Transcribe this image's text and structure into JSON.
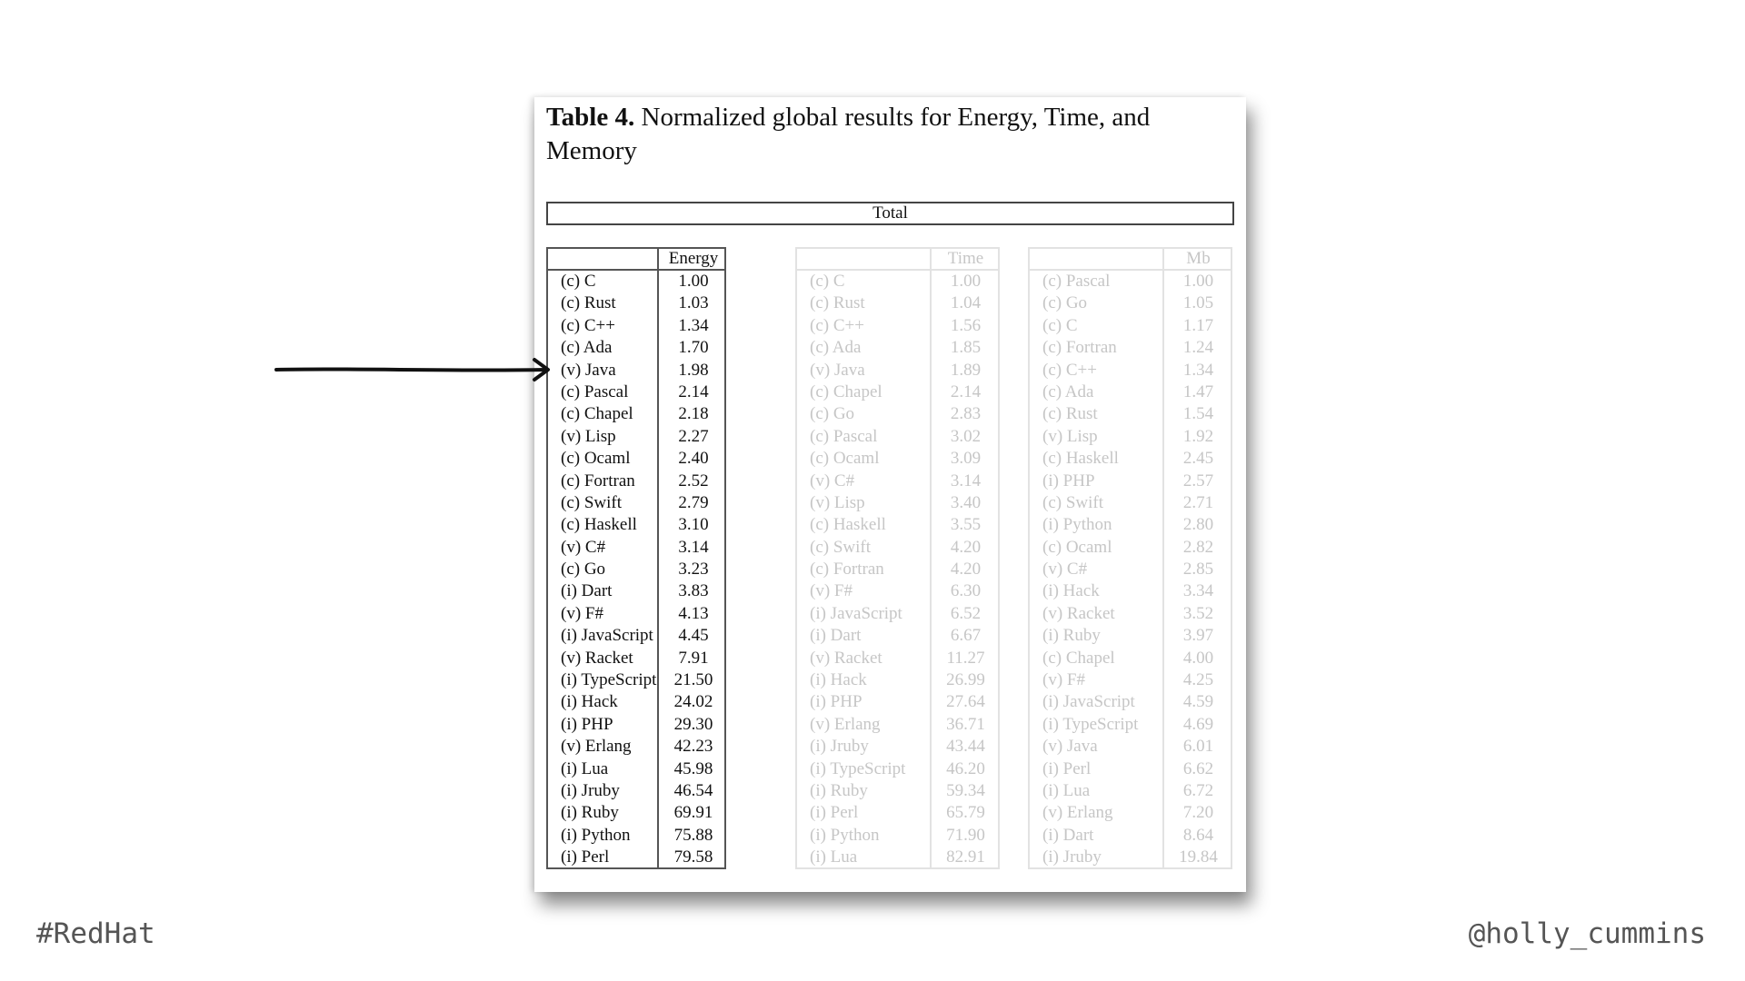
{
  "slide": {
    "hashtag": "#RedHat",
    "handle": "@holly_cummins"
  },
  "table": {
    "title_label": "Table 4.",
    "title_text": " Normalized global results for Energy, Time, and Memory",
    "total_header": "Total",
    "energy": {
      "header": "Energy",
      "rows": [
        [
          "(c) C",
          "1.00"
        ],
        [
          "(c) Rust",
          "1.03"
        ],
        [
          "(c) C++",
          "1.34"
        ],
        [
          "(c) Ada",
          "1.70"
        ],
        [
          "(v) Java",
          "1.98"
        ],
        [
          "(c) Pascal",
          "2.14"
        ],
        [
          "(c) Chapel",
          "2.18"
        ],
        [
          "(v) Lisp",
          "2.27"
        ],
        [
          "(c) Ocaml",
          "2.40"
        ],
        [
          "(c) Fortran",
          "2.52"
        ],
        [
          "(c) Swift",
          "2.79"
        ],
        [
          "(c) Haskell",
          "3.10"
        ],
        [
          "(v) C#",
          "3.14"
        ],
        [
          "(c) Go",
          "3.23"
        ],
        [
          "(i) Dart",
          "3.83"
        ],
        [
          "(v) F#",
          "4.13"
        ],
        [
          "(i) JavaScript",
          "4.45"
        ],
        [
          "(v) Racket",
          "7.91"
        ],
        [
          "(i) TypeScript",
          "21.50"
        ],
        [
          "(i) Hack",
          "24.02"
        ],
        [
          "(i) PHP",
          "29.30"
        ],
        [
          "(v) Erlang",
          "42.23"
        ],
        [
          "(i) Lua",
          "45.98"
        ],
        [
          "(i) Jruby",
          "46.54"
        ],
        [
          "(i) Ruby",
          "69.91"
        ],
        [
          "(i) Python",
          "75.88"
        ],
        [
          "(i) Perl",
          "79.58"
        ]
      ]
    },
    "time": {
      "header": "Time",
      "rows": [
        [
          "(c) C",
          "1.00"
        ],
        [
          "(c) Rust",
          "1.04"
        ],
        [
          "(c) C++",
          "1.56"
        ],
        [
          "(c) Ada",
          "1.85"
        ],
        [
          "(v) Java",
          "1.89"
        ],
        [
          "(c) Chapel",
          "2.14"
        ],
        [
          "(c) Go",
          "2.83"
        ],
        [
          "(c) Pascal",
          "3.02"
        ],
        [
          "(c) Ocaml",
          "3.09"
        ],
        [
          "(v) C#",
          "3.14"
        ],
        [
          "(v) Lisp",
          "3.40"
        ],
        [
          "(c) Haskell",
          "3.55"
        ],
        [
          "(c) Swift",
          "4.20"
        ],
        [
          "(c) Fortran",
          "4.20"
        ],
        [
          "(v) F#",
          "6.30"
        ],
        [
          "(i) JavaScript",
          "6.52"
        ],
        [
          "(i) Dart",
          "6.67"
        ],
        [
          "(v) Racket",
          "11.27"
        ],
        [
          "(i) Hack",
          "26.99"
        ],
        [
          "(i) PHP",
          "27.64"
        ],
        [
          "(v) Erlang",
          "36.71"
        ],
        [
          "(i) Jruby",
          "43.44"
        ],
        [
          "(i) TypeScript",
          "46.20"
        ],
        [
          "(i) Ruby",
          "59.34"
        ],
        [
          "(i) Perl",
          "65.79"
        ],
        [
          "(i) Python",
          "71.90"
        ],
        [
          "(i) Lua",
          "82.91"
        ]
      ]
    },
    "memory": {
      "header": "Mb",
      "rows": [
        [
          "(c) Pascal",
          "1.00"
        ],
        [
          "(c) Go",
          "1.05"
        ],
        [
          "(c) C",
          "1.17"
        ],
        [
          "(c) Fortran",
          "1.24"
        ],
        [
          "(c) C++",
          "1.34"
        ],
        [
          "(c) Ada",
          "1.47"
        ],
        [
          "(c) Rust",
          "1.54"
        ],
        [
          "(v) Lisp",
          "1.92"
        ],
        [
          "(c) Haskell",
          "2.45"
        ],
        [
          "(i) PHP",
          "2.57"
        ],
        [
          "(c) Swift",
          "2.71"
        ],
        [
          "(i) Python",
          "2.80"
        ],
        [
          "(c) Ocaml",
          "2.82"
        ],
        [
          "(v) C#",
          "2.85"
        ],
        [
          "(i) Hack",
          "3.34"
        ],
        [
          "(v) Racket",
          "3.52"
        ],
        [
          "(i) Ruby",
          "3.97"
        ],
        [
          "(c) Chapel",
          "4.00"
        ],
        [
          "(v) F#",
          "4.25"
        ],
        [
          "(i) JavaScript",
          "4.59"
        ],
        [
          "(i) TypeScript",
          "4.69"
        ],
        [
          "(v) Java",
          "6.01"
        ],
        [
          "(i) Perl",
          "6.62"
        ],
        [
          "(i) Lua",
          "6.72"
        ],
        [
          "(v) Erlang",
          "7.20"
        ],
        [
          "(i) Dart",
          "8.64"
        ],
        [
          "(i) Jruby",
          "19.84"
        ]
      ]
    }
  },
  "annotation": {
    "arrow_points_to": "(v) Java",
    "arrow_icon": "hand-drawn-arrow-right",
    "color": "#111111"
  },
  "colors": {
    "text": "#111111",
    "faded_text": "#c6c6c6",
    "footer_text": "#555555"
  }
}
